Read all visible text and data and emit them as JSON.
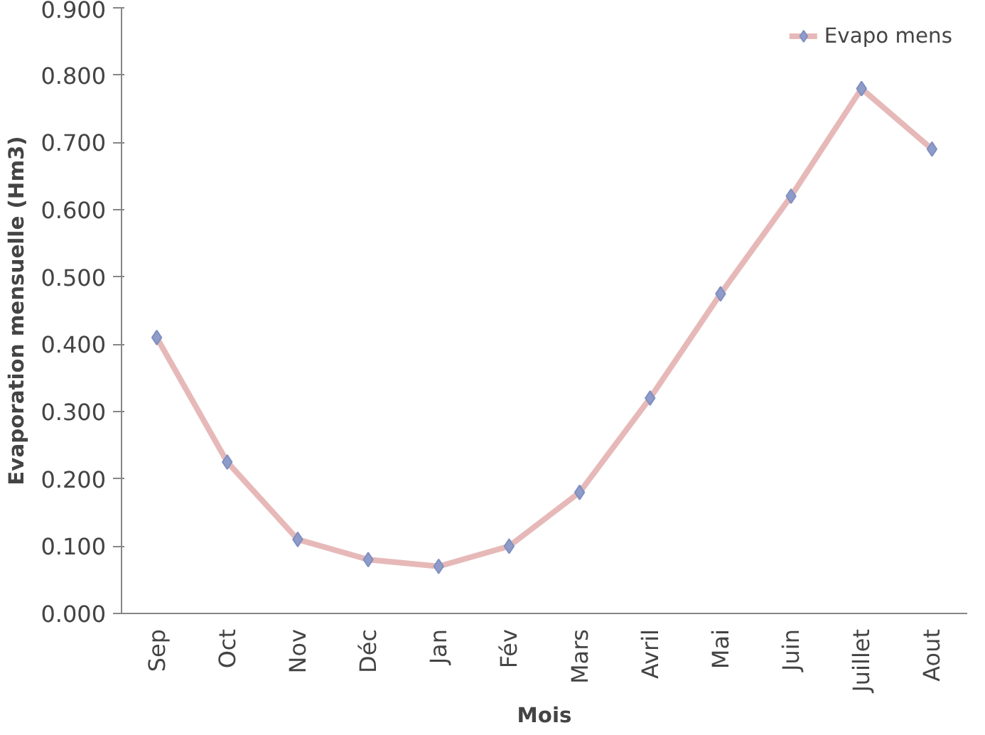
{
  "chart_data": {
    "type": "line",
    "xlabel": "Mois",
    "ylabel": "Evaporation mensuelle (Hm3)",
    "categories": [
      "Sep",
      "Oct",
      "Nov",
      "Déc",
      "Jan",
      "Fév",
      "Mars",
      "Avril",
      "Mai",
      "Juin",
      "Juillet",
      "Aout"
    ],
    "series": [
      {
        "name": "Evapo mens",
        "color": "#e6b9b8",
        "values": [
          0.41,
          0.225,
          0.11,
          0.08,
          0.07,
          0.1,
          0.18,
          0.32,
          0.475,
          0.62,
          0.78,
          0.69
        ]
      }
    ],
    "ylim": [
      0,
      0.9
    ],
    "yticks": [
      {
        "value": 0,
        "label": "0.000"
      },
      {
        "value": 0.1,
        "label": "0.100"
      },
      {
        "value": 0.2,
        "label": "0.200"
      },
      {
        "value": 0.3,
        "label": "0.300"
      },
      {
        "value": 0.4,
        "label": "0.400"
      },
      {
        "value": 0.5,
        "label": "0.500"
      },
      {
        "value": 0.6,
        "label": "0.600"
      },
      {
        "value": 0.7,
        "label": "0.700"
      },
      {
        "value": 0.8,
        "label": "0.800"
      },
      {
        "value": 0.9,
        "label": "0.900"
      }
    ],
    "marker": "diamond",
    "line_style": "solid",
    "grid": false,
    "legend": "top right"
  }
}
